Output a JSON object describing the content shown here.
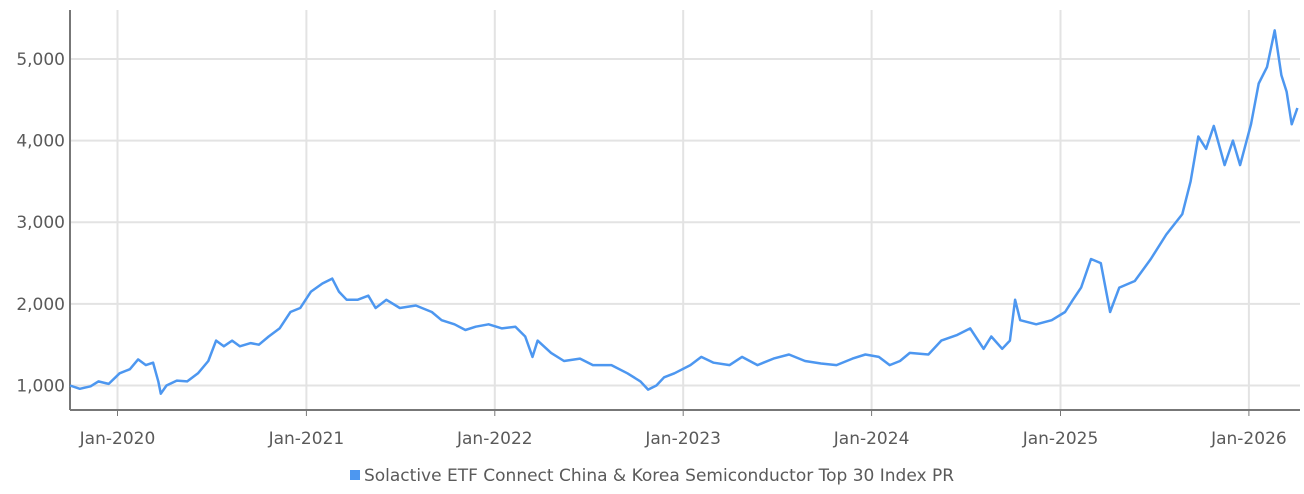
{
  "chart_data": {
    "type": "line",
    "title": "",
    "xlabel": "",
    "ylabel": "",
    "x_range": [
      "2019-10-01",
      "2026-04-10"
    ],
    "ylim": [
      700,
      5600
    ],
    "y_ticks": [
      1000,
      2000,
      3000,
      4000,
      5000
    ],
    "y_tick_labels": [
      "1,000",
      "2,000",
      "3,000",
      "4,000",
      "5,000"
    ],
    "x_ticks": [
      "2020-01-01",
      "2021-01-01",
      "2022-01-01",
      "2023-01-01",
      "2024-01-01",
      "2025-01-01",
      "2026-01-01"
    ],
    "x_tick_labels": [
      "Jan-2020",
      "Jan-2021",
      "Jan-2022",
      "Jan-2023",
      "Jan-2024",
      "Jan-2025",
      "Jan-2026"
    ],
    "grid": true,
    "legend_position": "bottom",
    "series": [
      {
        "name": "Solactive ETF Connect China & Korea Semiconductor Top 30 Index PR",
        "color": "#4d97f0",
        "points": [
          [
            "2019-10-01",
            1000
          ],
          [
            "2019-10-20",
            960
          ],
          [
            "2019-11-10",
            990
          ],
          [
            "2019-11-25",
            1050
          ],
          [
            "2019-12-15",
            1020
          ],
          [
            "2020-01-05",
            1150
          ],
          [
            "2020-01-25",
            1200
          ],
          [
            "2020-02-10",
            1320
          ],
          [
            "2020-02-25",
            1250
          ],
          [
            "2020-03-10",
            1280
          ],
          [
            "2020-03-20",
            1050
          ],
          [
            "2020-03-25",
            900
          ],
          [
            "2020-04-05",
            1000
          ],
          [
            "2020-04-25",
            1060
          ],
          [
            "2020-05-15",
            1050
          ],
          [
            "2020-06-05",
            1150
          ],
          [
            "2020-06-25",
            1300
          ],
          [
            "2020-07-10",
            1550
          ],
          [
            "2020-07-25",
            1480
          ],
          [
            "2020-08-10",
            1550
          ],
          [
            "2020-08-25",
            1480
          ],
          [
            "2020-09-15",
            1520
          ],
          [
            "2020-10-01",
            1500
          ],
          [
            "2020-10-20",
            1600
          ],
          [
            "2020-11-10",
            1700
          ],
          [
            "2020-12-01",
            1900
          ],
          [
            "2020-12-20",
            1950
          ],
          [
            "2021-01-10",
            2150
          ],
          [
            "2021-02-01",
            2250
          ],
          [
            "2021-02-20",
            2310
          ],
          [
            "2021-03-05",
            2150
          ],
          [
            "2021-03-20",
            2050
          ],
          [
            "2021-04-10",
            2050
          ],
          [
            "2021-05-01",
            2100
          ],
          [
            "2021-05-15",
            1950
          ],
          [
            "2021-06-05",
            2050
          ],
          [
            "2021-07-01",
            1950
          ],
          [
            "2021-08-01",
            1980
          ],
          [
            "2021-09-01",
            1900
          ],
          [
            "2021-09-20",
            1800
          ],
          [
            "2021-10-15",
            1750
          ],
          [
            "2021-11-05",
            1680
          ],
          [
            "2021-11-25",
            1720
          ],
          [
            "2021-12-20",
            1750
          ],
          [
            "2022-01-15",
            1700
          ],
          [
            "2022-02-10",
            1720
          ],
          [
            "2022-03-01",
            1600
          ],
          [
            "2022-03-15",
            1350
          ],
          [
            "2022-03-25",
            1550
          ],
          [
            "2022-04-20",
            1400
          ],
          [
            "2022-05-15",
            1300
          ],
          [
            "2022-06-15",
            1330
          ],
          [
            "2022-07-10",
            1250
          ],
          [
            "2022-08-15",
            1250
          ],
          [
            "2022-09-15",
            1150
          ],
          [
            "2022-10-10",
            1050
          ],
          [
            "2022-10-25",
            950
          ],
          [
            "2022-11-10",
            1000
          ],
          [
            "2022-11-25",
            1100
          ],
          [
            "2022-12-15",
            1150
          ],
          [
            "2023-01-15",
            1250
          ],
          [
            "2023-02-05",
            1350
          ],
          [
            "2023-03-01",
            1280
          ],
          [
            "2023-04-01",
            1250
          ],
          [
            "2023-04-25",
            1350
          ],
          [
            "2023-05-25",
            1250
          ],
          [
            "2023-06-25",
            1330
          ],
          [
            "2023-07-25",
            1380
          ],
          [
            "2023-08-25",
            1300
          ],
          [
            "2023-09-25",
            1270
          ],
          [
            "2023-10-25",
            1250
          ],
          [
            "2023-11-25",
            1330
          ],
          [
            "2023-12-20",
            1380
          ],
          [
            "2024-01-15",
            1350
          ],
          [
            "2024-02-05",
            1250
          ],
          [
            "2024-02-25",
            1300
          ],
          [
            "2024-03-15",
            1400
          ],
          [
            "2024-04-20",
            1380
          ],
          [
            "2024-05-15",
            1550
          ],
          [
            "2024-06-15",
            1620
          ],
          [
            "2024-07-10",
            1700
          ],
          [
            "2024-08-05",
            1450
          ],
          [
            "2024-08-20",
            1600
          ],
          [
            "2024-09-10",
            1450
          ],
          [
            "2024-09-25",
            1550
          ],
          [
            "2024-10-05",
            2050
          ],
          [
            "2024-10-15",
            1800
          ],
          [
            "2024-11-15",
            1750
          ],
          [
            "2024-12-15",
            1800
          ],
          [
            "2025-01-10",
            1900
          ],
          [
            "2025-01-25",
            2050
          ],
          [
            "2025-02-10",
            2200
          ],
          [
            "2025-03-01",
            2550
          ],
          [
            "2025-03-20",
            2500
          ],
          [
            "2025-04-07",
            1900
          ],
          [
            "2025-04-25",
            2200
          ],
          [
            "2025-05-25",
            2280
          ],
          [
            "2025-06-25",
            2550
          ],
          [
            "2025-07-25",
            2850
          ],
          [
            "2025-08-25",
            3100
          ],
          [
            "2025-09-10",
            3500
          ],
          [
            "2025-09-25",
            4050
          ],
          [
            "2025-10-10",
            3900
          ],
          [
            "2025-10-25",
            4180
          ],
          [
            "2025-11-15",
            3700
          ],
          [
            "2025-12-01",
            4000
          ],
          [
            "2025-12-15",
            3700
          ],
          [
            "2026-01-05",
            4200
          ],
          [
            "2026-01-20",
            4700
          ],
          [
            "2026-02-05",
            4900
          ],
          [
            "2026-02-20",
            5350
          ],
          [
            "2026-03-05",
            4800
          ],
          [
            "2026-03-15",
            4600
          ],
          [
            "2026-03-25",
            4200
          ],
          [
            "2026-04-05",
            4400
          ]
        ]
      }
    ]
  }
}
